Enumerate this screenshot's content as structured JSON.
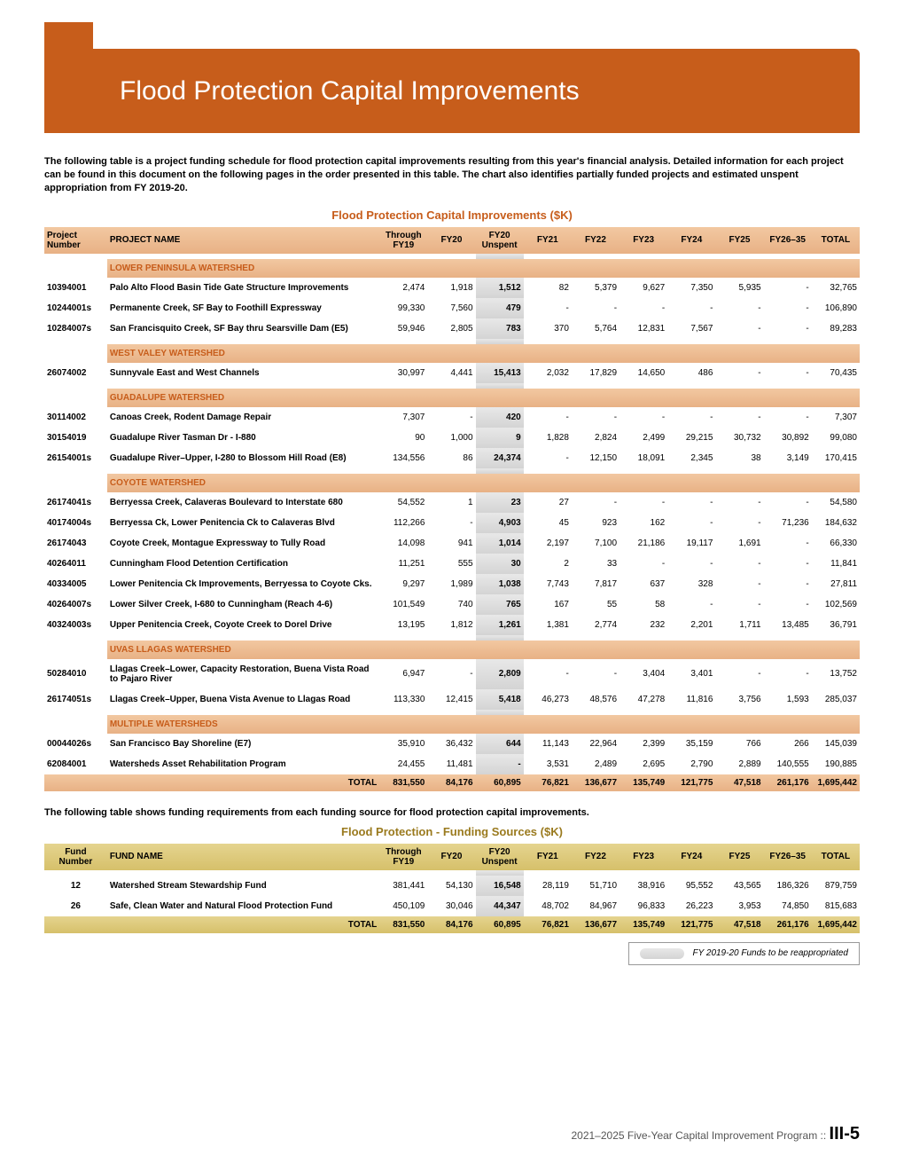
{
  "banner_title": "Flood Protection Capital Improvements",
  "intro_text": "The following table is a project funding schedule for flood protection capital improvements resulting from this year's financial analysis. Detailed information for each project can be found in this document on the following pages in the order presented in this table. The chart also identifies partially funded projects and estimated unspent appropriation from FY 2019-20.",
  "table1_title": "Flood Protection Capital Improvements ($K)",
  "table2_title": "Flood Protection - Funding Sources ($K)",
  "mid_text": "The following table shows funding requirements from each funding source for flood protection capital improvements.",
  "legend_text": "FY 2019-20 Funds to be reappropriated",
  "footer_text": "2021–2025 Five-Year Capital Improvement Program ::",
  "footer_page": "III-5",
  "columns": {
    "c1_t1": "Project Number",
    "c1_t2": "Fund Number",
    "c2_t1": "PROJECT NAME",
    "c2_t2": "FUND NAME",
    "c3": "Through FY19",
    "c4": "FY20",
    "c5": "FY20 Unspent",
    "c6": "FY21",
    "c7": "FY22",
    "c8": "FY23",
    "c9": "FY24",
    "c10": "FY25",
    "c11": "FY26–35",
    "c12": "TOTAL"
  },
  "groups": [
    {
      "name": "LOWER PENINSULA WATERSHED",
      "rows": [
        {
          "num": "10394001",
          "name": "Palo Alto Flood Basin Tide Gate Structure Improvements",
          "v": [
            "2,474",
            "1,918",
            "1,512",
            "82",
            "5,379",
            "9,627",
            "7,350",
            "5,935",
            "-",
            "32,765"
          ]
        },
        {
          "num": "10244001s",
          "name": "Permanente Creek, SF Bay to Foothill Expressway",
          "v": [
            "99,330",
            "7,560",
            "479",
            "-",
            "-",
            "-",
            "-",
            "-",
            "-",
            "106,890"
          ]
        },
        {
          "num": "10284007s",
          "name": "San Francisquito Creek, SF Bay thru Searsville Dam (E5)",
          "v": [
            "59,946",
            "2,805",
            "783",
            "370",
            "5,764",
            "12,831",
            "7,567",
            "-",
            "-",
            "89,283"
          ]
        }
      ]
    },
    {
      "name": "WEST VALEY WATERSHED",
      "rows": [
        {
          "num": "26074002",
          "name": "Sunnyvale East and West Channels",
          "v": [
            "30,997",
            "4,441",
            "15,413",
            "2,032",
            "17,829",
            "14,650",
            "486",
            "-",
            "-",
            "70,435"
          ]
        }
      ]
    },
    {
      "name": "GUADALUPE WATERSHED",
      "rows": [
        {
          "num": "30114002",
          "name": "Canoas Creek, Rodent Damage Repair",
          "v": [
            "7,307",
            "-",
            "420",
            "-",
            "-",
            "-",
            "-",
            "-",
            "-",
            "7,307"
          ]
        },
        {
          "num": "30154019",
          "name": "Guadalupe River Tasman Dr - I-880",
          "v": [
            "90",
            "1,000",
            "9",
            "1,828",
            "2,824",
            "2,499",
            "29,215",
            "30,732",
            "30,892",
            "99,080"
          ]
        },
        {
          "num": "26154001s",
          "name": "Guadalupe River–Upper, I-280 to Blossom Hill Road (E8)",
          "v": [
            "134,556",
            "86",
            "24,374",
            "-",
            "12,150",
            "18,091",
            "2,345",
            "38",
            "3,149",
            "170,415"
          ]
        }
      ]
    },
    {
      "name": "COYOTE WATERSHED",
      "rows": [
        {
          "num": "26174041s",
          "name": "Berryessa Creek, Calaveras Boulevard to Interstate 680",
          "v": [
            "54,552",
            "1",
            "23",
            "27",
            "-",
            "-",
            "-",
            "-",
            "-",
            "54,580"
          ]
        },
        {
          "num": "40174004s",
          "name": "Berryessa Ck, Lower Penitencia Ck to Calaveras Blvd",
          "v": [
            "112,266",
            "-",
            "4,903",
            "45",
            "923",
            "162",
            "-",
            "-",
            "71,236",
            "184,632"
          ]
        },
        {
          "num": "26174043",
          "name": "Coyote Creek, Montague Expressway to Tully Road",
          "v": [
            "14,098",
            "941",
            "1,014",
            "2,197",
            "7,100",
            "21,186",
            "19,117",
            "1,691",
            "-",
            "66,330"
          ]
        },
        {
          "num": "40264011",
          "name": "Cunningham Flood Detention Certification",
          "v": [
            "11,251",
            "555",
            "30",
            "2",
            "33",
            "-",
            "-",
            "-",
            "-",
            "11,841"
          ]
        },
        {
          "num": "40334005",
          "name": "Lower Penitencia Ck Improvements, Berryessa to Coyote Cks.",
          "v": [
            "9,297",
            "1,989",
            "1,038",
            "7,743",
            "7,817",
            "637",
            "328",
            "-",
            "-",
            "27,811"
          ]
        },
        {
          "num": "40264007s",
          "name": "Lower Silver Creek, I-680 to Cunningham (Reach 4-6)",
          "v": [
            "101,549",
            "740",
            "765",
            "167",
            "55",
            "58",
            "-",
            "-",
            "-",
            "102,569"
          ]
        },
        {
          "num": "40324003s",
          "name": "Upper Penitencia Creek, Coyote Creek to Dorel Drive",
          "v": [
            "13,195",
            "1,812",
            "1,261",
            "1,381",
            "2,774",
            "232",
            "2,201",
            "1,711",
            "13,485",
            "36,791"
          ]
        }
      ]
    },
    {
      "name": "UVAS LLAGAS WATERSHED",
      "rows": [
        {
          "num": "50284010",
          "name": "Llagas Creek–Lower, Capacity Restoration, Buena Vista Road to Pajaro River",
          "v": [
            "6,947",
            "-",
            "2,809",
            "-",
            "-",
            "3,404",
            "3,401",
            "-",
            "-",
            "13,752"
          ]
        },
        {
          "num": "26174051s",
          "name": "Llagas Creek–Upper, Buena Vista Avenue to Llagas Road",
          "v": [
            "113,330",
            "12,415",
            "5,418",
            "46,273",
            "48,576",
            "47,278",
            "11,816",
            "3,756",
            "1,593",
            "285,037"
          ]
        }
      ]
    },
    {
      "name": "MULTIPLE WATERSHEDS",
      "rows": [
        {
          "num": "00044026s",
          "name": "San Francisco Bay Shoreline (E7)",
          "v": [
            "35,910",
            "36,432",
            "644",
            "11,143",
            "22,964",
            "2,399",
            "35,159",
            "766",
            "266",
            "145,039"
          ]
        },
        {
          "num": "62084001",
          "name": "Watersheds Asset Rehabilitation Program",
          "v": [
            "24,455",
            "11,481",
            "-",
            "3,531",
            "2,489",
            "2,695",
            "2,790",
            "2,889",
            "140,555",
            "190,885"
          ]
        }
      ]
    }
  ],
  "total_row": {
    "label": "TOTAL",
    "v": [
      "831,550",
      "84,176",
      "60,895",
      "76,821",
      "136,677",
      "135,749",
      "121,775",
      "47,518",
      "261,176",
      "1,695,442"
    ]
  },
  "funds_rows": [
    {
      "num": "12",
      "name": "Watershed Stream Stewardship Fund",
      "v": [
        "381,441",
        "54,130",
        "16,548",
        "28,119",
        "51,710",
        "38,916",
        "95,552",
        "43,565",
        "186,326",
        "879,759"
      ]
    },
    {
      "num": "26",
      "name": "Safe, Clean Water and Natural Flood Protection Fund",
      "v": [
        "450,109",
        "30,046",
        "44,347",
        "48,702",
        "84,967",
        "96,833",
        "26,223",
        "3,953",
        "74,850",
        "815,683"
      ]
    }
  ],
  "funds_total": {
    "label": "TOTAL",
    "v": [
      "831,550",
      "84,176",
      "60,895",
      "76,821",
      "136,677",
      "135,749",
      "121,775",
      "47,518",
      "261,176",
      "1,695,442"
    ]
  }
}
